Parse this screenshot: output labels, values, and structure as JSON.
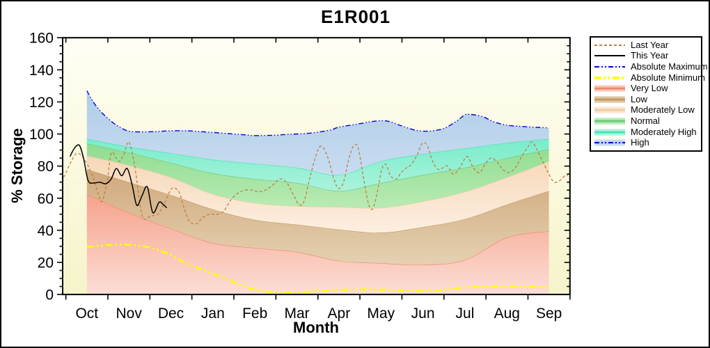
{
  "title": "E1R001",
  "chart_data": {
    "type": "area",
    "title": "E1R001",
    "xlabel": "Month",
    "ylabel": "% Storage",
    "ylim": [
      0,
      160
    ],
    "y_ticks": [
      0,
      20,
      40,
      60,
      80,
      100,
      120,
      140,
      160
    ],
    "y_minor_step": 5,
    "categories": [
      "Oct",
      "Nov",
      "Dec",
      "Jan",
      "Feb",
      "Mar",
      "Apr",
      "May",
      "Jun",
      "Jul",
      "Aug",
      "Sep"
    ],
    "plot_bg_top": "#fffef4",
    "plot_bg_bottom": "#f6f4ca",
    "boundaries": {
      "zero": [
        [
          0,
          0
        ],
        [
          11,
          0
        ]
      ],
      "very_low_top": [
        [
          0,
          62.5
        ],
        [
          1,
          51
        ],
        [
          2,
          41
        ],
        [
          3,
          32
        ],
        [
          4,
          29
        ],
        [
          5,
          26.5
        ],
        [
          6,
          21
        ],
        [
          7,
          19.5
        ],
        [
          8,
          18.5
        ],
        [
          9,
          21.5
        ],
        [
          10,
          35.5
        ],
        [
          11,
          39.5
        ]
      ],
      "low_top": [
        [
          0,
          78
        ],
        [
          1,
          70
        ],
        [
          2,
          62
        ],
        [
          3,
          53
        ],
        [
          4,
          46.5
        ],
        [
          5,
          43.5
        ],
        [
          6,
          40.5
        ],
        [
          7,
          38.5
        ],
        [
          8,
          42
        ],
        [
          9,
          47
        ],
        [
          10,
          56
        ],
        [
          11,
          64.5
        ]
      ],
      "moderately_low_top": [
        [
          0,
          86.5
        ],
        [
          1,
          80.5
        ],
        [
          2,
          73
        ],
        [
          3,
          62.5
        ],
        [
          4,
          57
        ],
        [
          5,
          55
        ],
        [
          6,
          54.5
        ],
        [
          7,
          54
        ],
        [
          8,
          58
        ],
        [
          9,
          64
        ],
        [
          10,
          73
        ],
        [
          11,
          83
        ]
      ],
      "normal_top": [
        [
          0,
          94
        ],
        [
          1,
          88.5
        ],
        [
          2,
          82
        ],
        [
          3,
          75.5
        ],
        [
          4,
          72
        ],
        [
          5,
          69.5
        ],
        [
          6,
          64.5
        ],
        [
          7,
          69.5
        ],
        [
          8,
          74.5
        ],
        [
          9,
          79
        ],
        [
          10,
          85
        ],
        [
          11,
          90.5
        ]
      ],
      "moderately_high_top": [
        [
          0,
          97
        ],
        [
          1,
          92
        ],
        [
          2,
          88
        ],
        [
          3,
          84
        ],
        [
          4,
          81.5
        ],
        [
          5,
          79
        ],
        [
          6,
          74.5
        ],
        [
          7,
          83
        ],
        [
          8,
          87.5
        ],
        [
          9,
          91
        ],
        [
          10,
          94.5
        ],
        [
          11,
          97
        ]
      ],
      "absolute_maximum": [
        [
          0,
          127
        ],
        [
          0.15,
          120
        ],
        [
          0.35,
          113.5
        ],
        [
          0.6,
          107.5
        ],
        [
          0.8,
          104
        ],
        [
          1,
          101.8
        ],
        [
          1.3,
          101.3
        ],
        [
          1.7,
          101.6
        ],
        [
          2,
          102
        ],
        [
          2.4,
          102
        ],
        [
          2.8,
          101.3
        ],
        [
          3,
          101
        ],
        [
          3.4,
          100.2
        ],
        [
          3.8,
          99.4
        ],
        [
          4,
          99
        ],
        [
          4.4,
          99.2
        ],
        [
          4.8,
          99.8
        ],
        [
          5,
          100
        ],
        [
          5.4,
          100.8
        ],
        [
          5.8,
          102.5
        ],
        [
          6,
          104.3
        ],
        [
          6.4,
          106
        ],
        [
          6.8,
          107.8
        ],
        [
          7,
          108.3
        ],
        [
          7.2,
          107.8
        ],
        [
          7.5,
          105
        ],
        [
          7.8,
          102.5
        ],
        [
          8,
          101.8
        ],
        [
          8.2,
          101.9
        ],
        [
          8.5,
          103.5
        ],
        [
          8.8,
          108
        ],
        [
          9,
          112
        ],
        [
          9.1,
          112.3
        ],
        [
          9.4,
          111
        ],
        [
          9.7,
          107.5
        ],
        [
          10,
          105.5
        ],
        [
          10.3,
          104.8
        ],
        [
          10.6,
          104.3
        ],
        [
          11,
          103.8
        ]
      ]
    },
    "bands": [
      {
        "name": "Very Low",
        "upper": "very_low_top",
        "lower": "zero",
        "fill_top": "#f5a28c",
        "fill_bottom": "#fcded5",
        "edge": "#ef8569"
      },
      {
        "name": "Low",
        "upper": "low_top",
        "lower": "very_low_top",
        "fill_top": "#cfa87c",
        "fill_bottom": "#e5d1b2",
        "edge": "#c3985f"
      },
      {
        "name": "Moderately Low",
        "upper": "moderately_low_top",
        "lower": "low_top",
        "fill_top": "#f6d7b7",
        "fill_bottom": "#fcefe1",
        "edge": "#eeca9f"
      },
      {
        "name": "Normal",
        "upper": "normal_top",
        "lower": "moderately_low_top",
        "fill_top": "#8edc90",
        "fill_bottom": "#b9ebb4",
        "edge": "#66c873"
      },
      {
        "name": "Moderately High",
        "upper": "moderately_high_top",
        "lower": "normal_top",
        "fill_top": "#78ecc9",
        "fill_bottom": "#abf3dd",
        "edge": "#3fe2b6"
      },
      {
        "name": "High",
        "upper": "absolute_maximum",
        "lower": "moderately_high_top",
        "fill_top": "#b0cde8",
        "fill_bottom": "#c8dcf0",
        "edge": ""
      }
    ],
    "lines": [
      {
        "name": "Absolute Minimum",
        "color": "#ffff00",
        "width": 2.8,
        "dash": "10 4 2.5 4 2.5 4",
        "points": [
          [
            0,
            29.5
          ],
          [
            0.4,
            30.6
          ],
          [
            0.8,
            31
          ],
          [
            1.2,
            30.6
          ],
          [
            1.6,
            28.5
          ],
          [
            2,
            24.5
          ],
          [
            2.4,
            19
          ],
          [
            2.8,
            15
          ],
          [
            3,
            13
          ],
          [
            3.3,
            10
          ],
          [
            3.6,
            6.5
          ],
          [
            4,
            3
          ],
          [
            4.4,
            1.6
          ],
          [
            4.8,
            1.2
          ],
          [
            5,
            1.4
          ],
          [
            5.5,
            2
          ],
          [
            6,
            2.8
          ],
          [
            6.5,
            3.2
          ],
          [
            7,
            3
          ],
          [
            7.5,
            2.4
          ],
          [
            8,
            2.2
          ],
          [
            8.4,
            2.6
          ],
          [
            8.8,
            3.8
          ],
          [
            9,
            4.4
          ],
          [
            9.5,
            4.8
          ],
          [
            10,
            5
          ],
          [
            10.5,
            4.8
          ],
          [
            11,
            4.4
          ]
        ]
      },
      {
        "name": "Absolute Maximum",
        "color": "#0000dd",
        "width": 1.4,
        "dash": "7 3 1.5 3 1.5 3",
        "points": [
          [
            0,
            127
          ],
          [
            0.15,
            120
          ],
          [
            0.35,
            113.5
          ],
          [
            0.6,
            107.5
          ],
          [
            0.8,
            104
          ],
          [
            1,
            101.8
          ],
          [
            1.3,
            101.3
          ],
          [
            1.7,
            101.6
          ],
          [
            2,
            102
          ],
          [
            2.4,
            102
          ],
          [
            2.8,
            101.3
          ],
          [
            3,
            101
          ],
          [
            3.4,
            100.2
          ],
          [
            3.8,
            99.4
          ],
          [
            4,
            99
          ],
          [
            4.4,
            99.2
          ],
          [
            4.8,
            99.8
          ],
          [
            5,
            100
          ],
          [
            5.4,
            100.8
          ],
          [
            5.8,
            102.5
          ],
          [
            6,
            104.3
          ],
          [
            6.4,
            106
          ],
          [
            6.8,
            107.8
          ],
          [
            7,
            108.3
          ],
          [
            7.2,
            107.8
          ],
          [
            7.5,
            105
          ],
          [
            7.8,
            102.5
          ],
          [
            8,
            101.8
          ],
          [
            8.2,
            101.9
          ],
          [
            8.5,
            103.5
          ],
          [
            8.8,
            108
          ],
          [
            9,
            112
          ],
          [
            9.1,
            112.3
          ],
          [
            9.4,
            111
          ],
          [
            9.7,
            107.5
          ],
          [
            10,
            105.5
          ],
          [
            10.3,
            104.8
          ],
          [
            10.6,
            104.3
          ],
          [
            11,
            103.8
          ]
        ]
      },
      {
        "name": "Last Year",
        "color": "#bd7e41",
        "width": 1.3,
        "dash": "4 3",
        "points": [
          [
            -0.55,
            73
          ],
          [
            -0.33,
            85
          ],
          [
            -0.22,
            88
          ],
          [
            -0.08,
            85
          ],
          [
            0.12,
            75
          ],
          [
            0.28,
            62
          ],
          [
            0.36,
            58
          ],
          [
            0.48,
            70
          ],
          [
            0.58,
            88
          ],
          [
            0.7,
            85
          ],
          [
            0.78,
            83
          ],
          [
            0.89,
            88
          ],
          [
            1,
            95
          ],
          [
            1.14,
            80
          ],
          [
            1.27,
            55
          ],
          [
            1.36,
            47
          ],
          [
            1.52,
            49
          ],
          [
            1.69,
            50
          ],
          [
            1.85,
            57
          ],
          [
            2.02,
            66
          ],
          [
            2.19,
            64
          ],
          [
            2.3,
            55
          ],
          [
            2.43,
            46
          ],
          [
            2.6,
            44
          ],
          [
            2.76,
            48
          ],
          [
            2.93,
            50
          ],
          [
            3.1,
            50
          ],
          [
            3.26,
            52
          ],
          [
            3.43,
            59
          ],
          [
            3.59,
            63
          ],
          [
            3.76,
            65
          ],
          [
            3.92,
            65
          ],
          [
            4.09,
            64
          ],
          [
            4.25,
            65
          ],
          [
            4.42,
            68
          ],
          [
            4.59,
            72
          ],
          [
            4.75,
            70
          ],
          [
            4.92,
            62
          ],
          [
            5.05,
            56
          ],
          [
            5.17,
            58
          ],
          [
            5.33,
            75
          ],
          [
            5.5,
            90
          ],
          [
            5.61,
            92
          ],
          [
            5.74,
            85
          ],
          [
            5.88,
            72
          ],
          [
            5.99,
            66
          ],
          [
            6.11,
            70
          ],
          [
            6.24,
            85
          ],
          [
            6.36,
            93
          ],
          [
            6.46,
            91
          ],
          [
            6.57,
            75
          ],
          [
            6.69,
            58
          ],
          [
            6.79,
            53
          ],
          [
            6.9,
            62
          ],
          [
            7.02,
            78
          ],
          [
            7.12,
            81
          ],
          [
            7.23,
            74
          ],
          [
            7.37,
            72
          ],
          [
            7.48,
            76
          ],
          [
            7.61,
            79
          ],
          [
            7.73,
            81
          ],
          [
            7.86,
            87
          ],
          [
            7.98,
            94
          ],
          [
            8.1,
            93
          ],
          [
            8.23,
            83
          ],
          [
            8.36,
            78
          ],
          [
            8.48,
            79
          ],
          [
            8.59,
            80
          ],
          [
            8.73,
            75
          ],
          [
            8.9,
            80
          ],
          [
            9.05,
            86
          ],
          [
            9.2,
            79
          ],
          [
            9.35,
            76
          ],
          [
            9.5,
            82
          ],
          [
            9.62,
            85
          ],
          [
            9.75,
            83
          ],
          [
            9.9,
            78
          ],
          [
            10.05,
            76
          ],
          [
            10.2,
            79
          ],
          [
            10.35,
            86
          ],
          [
            10.5,
            92
          ],
          [
            10.6,
            95
          ],
          [
            10.72,
            90
          ],
          [
            10.85,
            83
          ],
          [
            11,
            75
          ],
          [
            11.12,
            70
          ],
          [
            11.26,
            71
          ],
          [
            11.38,
            74
          ],
          [
            11.45,
            74
          ]
        ]
      },
      {
        "name": "This Year",
        "color": "#000000",
        "width": 1.5,
        "dash": "",
        "points": [
          [
            -0.4,
            86
          ],
          [
            -0.3,
            91
          ],
          [
            -0.18,
            93
          ],
          [
            -0.08,
            85
          ],
          [
            0.03,
            71
          ],
          [
            0.17,
            69.5
          ],
          [
            0.31,
            70
          ],
          [
            0.45,
            69
          ],
          [
            0.58,
            72
          ],
          [
            0.7,
            78.5
          ],
          [
            0.83,
            74
          ],
          [
            0.96,
            78.5
          ],
          [
            1.08,
            68
          ],
          [
            1.19,
            55.5
          ],
          [
            1.32,
            62
          ],
          [
            1.44,
            67
          ],
          [
            1.57,
            51
          ],
          [
            1.72,
            57.5
          ],
          [
            1.82,
            56
          ],
          [
            1.9,
            54
          ]
        ]
      }
    ]
  },
  "legend": {
    "items": [
      {
        "label": "Last Year",
        "kind": "line",
        "style": "dash",
        "color": "#bd7e41"
      },
      {
        "label": "This Year",
        "kind": "line",
        "style": "solid",
        "color": "#000000"
      },
      {
        "label": "Absolute Maximum",
        "kind": "line",
        "style": "dashdot",
        "color": "#0000dd"
      },
      {
        "label": "Absolute Minimum",
        "kind": "line",
        "style": "dashdot-thick",
        "color": "#ffff00"
      },
      {
        "label": "Very Low",
        "kind": "band",
        "color": "#f5a28c",
        "light": "#fde6de",
        "edge": "#ef8569"
      },
      {
        "label": "Low",
        "kind": "band",
        "color": "#cfa87c",
        "light": "#eee0c8",
        "edge": "#c3985f"
      },
      {
        "label": "Moderately Low",
        "kind": "band",
        "color": "#f6d7b7",
        "light": "#fdf1e4",
        "edge": "#eeca9f"
      },
      {
        "label": "Normal",
        "kind": "band",
        "color": "#8edc90",
        "light": "#d9f4d6",
        "edge": "#66c873"
      },
      {
        "label": "Moderately High",
        "kind": "band",
        "color": "#78ecc9",
        "light": "#cdf8ea",
        "edge": "#3fe2b6"
      },
      {
        "label": "High",
        "kind": "band",
        "color": "#b2cfe9",
        "light": "#dde9f5",
        "edge": "",
        "line": "#0000dd"
      }
    ]
  }
}
